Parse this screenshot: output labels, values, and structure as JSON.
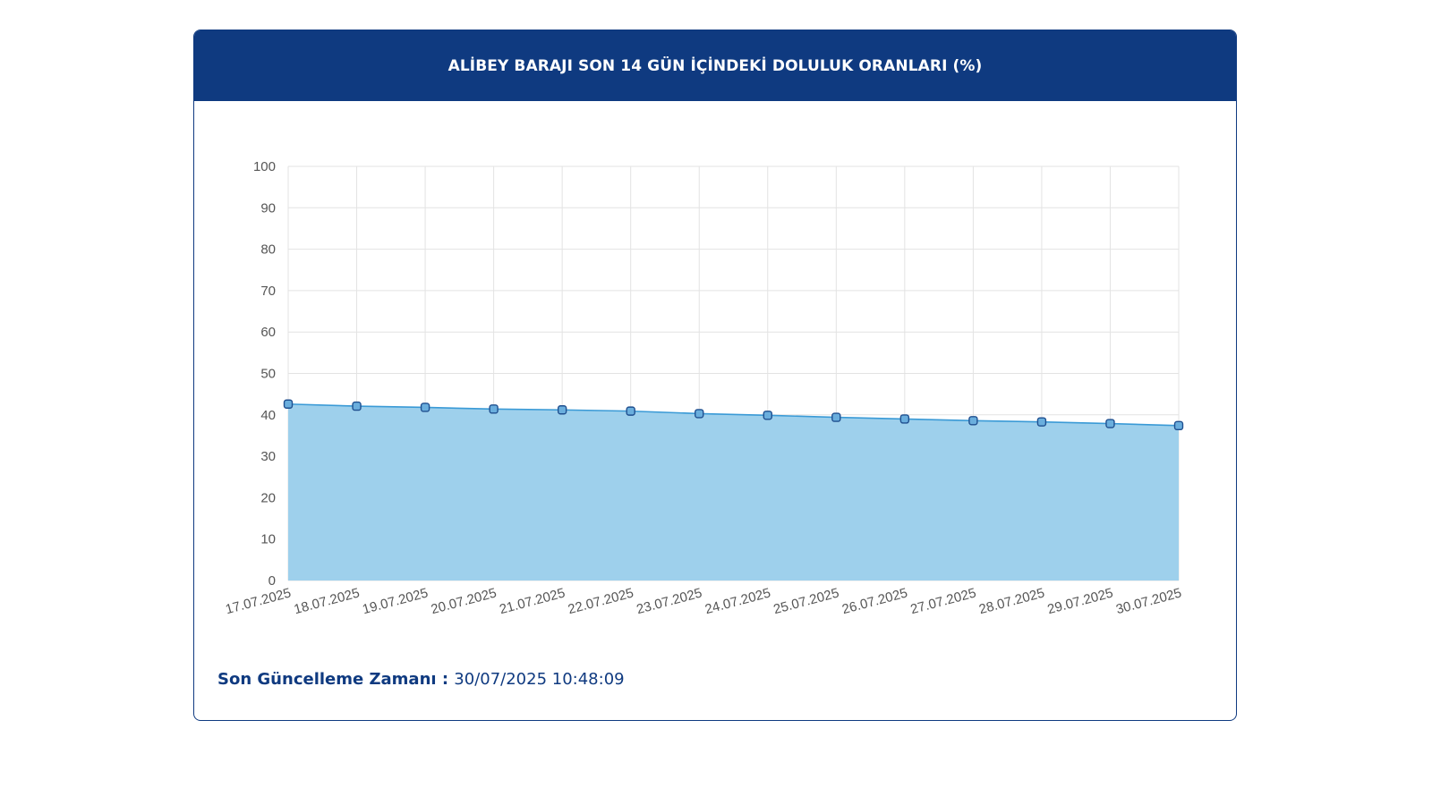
{
  "header": {
    "title": "ALİBEY BARAJI SON 14 GÜN İÇİNDEKİ DOLULUK ORANLARI (%)"
  },
  "footer": {
    "label": "Son Güncelleme Zamanı",
    "separator": " : ",
    "value": "30/07/2025 10:48:09"
  },
  "colors": {
    "header_bg": "#0f3a80",
    "line": "#3a9ad6",
    "fill": "#9ed0ec",
    "marker_fill": "#6aaedd",
    "marker_stroke": "#1f4f8f",
    "grid": "#e3e3e3",
    "tick_text": "#555555"
  },
  "chart_data": {
    "type": "area",
    "categories": [
      "17.07.2025",
      "18.07.2025",
      "19.07.2025",
      "20.07.2025",
      "21.07.2025",
      "22.07.2025",
      "23.07.2025",
      "24.07.2025",
      "25.07.2025",
      "26.07.2025",
      "27.07.2025",
      "28.07.2025",
      "29.07.2025",
      "30.07.2025"
    ],
    "series": [
      {
        "values": [
          42.6,
          42.1,
          41.8,
          41.4,
          41.2,
          40.9,
          40.3,
          39.9,
          39.4,
          39.0,
          38.6,
          38.3,
          37.9,
          37.4
        ]
      }
    ],
    "yticks": [
      "0",
      "10",
      "20",
      "30",
      "40",
      "50",
      "60",
      "70",
      "80",
      "90",
      "100"
    ],
    "ylim": [
      0,
      100
    ],
    "grid": true,
    "legend": false
  }
}
